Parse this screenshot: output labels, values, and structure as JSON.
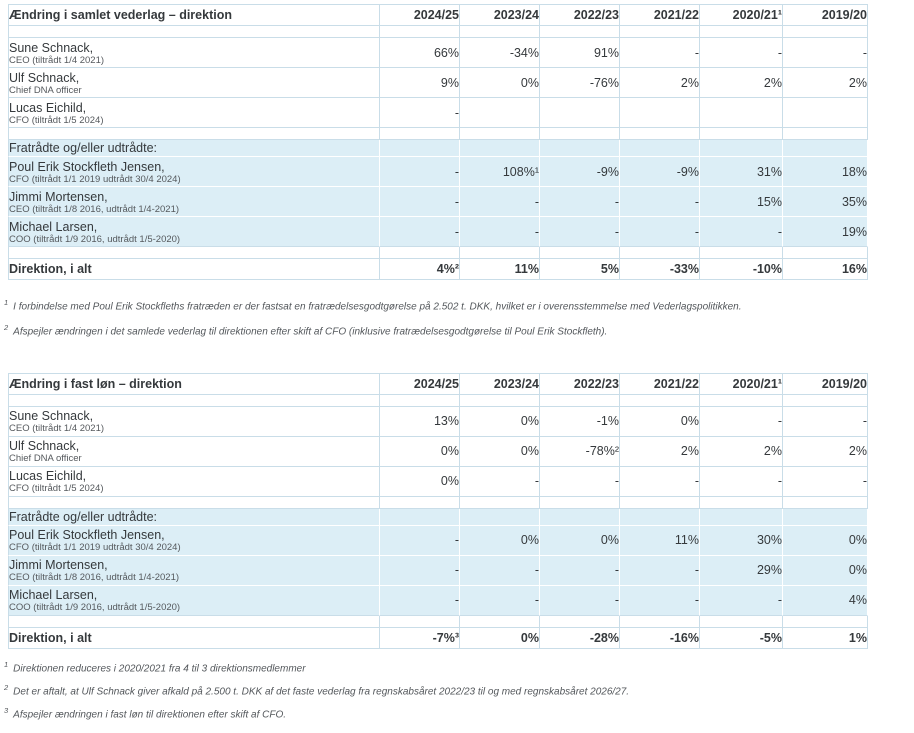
{
  "colors": {
    "band_background": "#dceef6",
    "cell_border": "#c9dde8",
    "band_border": "#ffffff",
    "text": "#35393c",
    "sub_text": "#55595d",
    "footnote_text": "#53575b"
  },
  "columns": {
    "label_width": 372,
    "value_widths": [
      80,
      80,
      80,
      80,
      83,
      85
    ]
  },
  "tables": [
    {
      "id": "samlet-vederlag",
      "title": "Ændring i samlet vederlag – direktion",
      "years": [
        "2024/25",
        "2023/24",
        "2022/23",
        "2021/22",
        "2020/21¹",
        "2019/20"
      ],
      "rows": [
        {
          "type": "spacer"
        },
        {
          "type": "person",
          "name": "Sune Schnack,",
          "sub": "CEO (tiltrådt 1/4 2021)",
          "values": [
            "66%",
            "-34%",
            "91%",
            "-",
            "-",
            "-"
          ]
        },
        {
          "type": "person",
          "name": "Ulf Schnack,",
          "sub": "Chief DNA officer",
          "values": [
            "9%",
            "0%",
            "-76%",
            "2%",
            "2%",
            "2%"
          ]
        },
        {
          "type": "person",
          "name": "Lucas Eichild,",
          "sub": "CFO (tiltrådt 1/5 2024)",
          "values": [
            "-",
            "",
            "",
            "",
            "",
            ""
          ]
        },
        {
          "type": "spacer"
        },
        {
          "type": "section",
          "band": true,
          "label": "Fratrådte og/eller udtrådte:"
        },
        {
          "type": "person",
          "band": true,
          "name": "Poul Erik Stockfleth Jensen,",
          "sub": "CFO (tiltrådt 1/1 2019 udtrådt 30/4 2024)",
          "values": [
            "-",
            "108%¹",
            "-9%",
            "-9%",
            "31%",
            "18%"
          ]
        },
        {
          "type": "person",
          "band": true,
          "name": "Jimmi Mortensen,",
          "sub": "CEO (tiltrådt 1/8 2016, udtrådt 1/4-2021)",
          "values": [
            "-",
            "-",
            "-",
            "-",
            "15%",
            "35%"
          ]
        },
        {
          "type": "person",
          "band": true,
          "bandLast": true,
          "name": "Michael Larsen,",
          "sub": "COO (tiltrådt 1/9 2016, udtrådt 1/5-2020)",
          "values": [
            "-",
            "-",
            "-",
            "-",
            "-",
            "19%"
          ]
        },
        {
          "type": "spacer"
        },
        {
          "type": "total",
          "label": "Direktion, i alt",
          "values": [
            "4%²",
            "11%",
            "5%",
            "-33%",
            "-10%",
            "16%"
          ]
        }
      ],
      "footnotes": [
        {
          "marker": "1",
          "text": "I forbindelse med Poul Erik Stockfleths fratræden er der fastsat en fratrædelsesgodtgørelse på 2.502 t. DKK, hvilket er i overensstemmelse med Vederlagspolitikken."
        },
        {
          "marker": "2",
          "text": "Afspejler ændringen i det samlede vederlag til direktionen efter skift af CFO (inklusive fratrædelsesgodtgørelse til Poul Erik Stockfleth)."
        }
      ]
    },
    {
      "id": "fast-loen",
      "title": "Ændring i fast løn – direktion",
      "years": [
        "2024/25",
        "2023/24",
        "2022/23",
        "2021/22",
        "2020/21¹",
        "2019/20"
      ],
      "rows": [
        {
          "type": "spacer"
        },
        {
          "type": "person",
          "name": "Sune Schnack,",
          "sub": "CEO (tiltrådt 1/4 2021)",
          "values": [
            "13%",
            "0%",
            "-1%",
            "0%",
            "-",
            "-"
          ]
        },
        {
          "type": "person",
          "name": "Ulf Schnack,",
          "sub": "Chief DNA officer",
          "values": [
            "0%",
            "0%",
            "-78%²",
            "2%",
            "2%",
            "2%"
          ]
        },
        {
          "type": "person",
          "name": "Lucas Eichild,",
          "sub": "CFO (tiltrådt 1/5 2024)",
          "values": [
            "0%",
            "-",
            "-",
            "-",
            "-",
            "-"
          ]
        },
        {
          "type": "spacer"
        },
        {
          "type": "section",
          "band": true,
          "label": "Fratrådte og/eller udtrådte:"
        },
        {
          "type": "person",
          "band": true,
          "name": "Poul Erik Stockfleth Jensen,",
          "sub": "CFO (tiltrådt 1/1 2019 udtrådt 30/4 2024)",
          "values": [
            "-",
            "0%",
            "0%",
            "11%",
            "30%",
            "0%"
          ]
        },
        {
          "type": "person",
          "band": true,
          "name": "Jimmi Mortensen,",
          "sub": "CEO (tiltrådt 1/8 2016, udtrådt 1/4-2021)",
          "values": [
            "-",
            "-",
            "-",
            "-",
            "29%",
            "0%"
          ]
        },
        {
          "type": "person",
          "band": true,
          "bandLast": true,
          "name": "Michael Larsen,",
          "sub": "COO (tiltrådt 1/9 2016, udtrådt 1/5-2020)",
          "values": [
            "-",
            "-",
            "-",
            "-",
            "-",
            "4%"
          ]
        },
        {
          "type": "spacer"
        },
        {
          "type": "total",
          "label": "Direktion, i alt",
          "values": [
            "-7%³",
            "0%",
            "-28%",
            "-16%",
            "-5%",
            "1%"
          ]
        }
      ],
      "footnotes": [
        {
          "marker": "1",
          "text": "Direktionen reduceres i 2020/2021 fra 4 til 3 direktionsmedlemmer"
        },
        {
          "marker": "2",
          "text": "Det er aftalt, at Ulf Schnack giver afkald på 2.500 t. DKK af det faste vederlag fra regnskabsåret 2022/23 til og med regnskabsåret 2026/27."
        },
        {
          "marker": "3",
          "text": "Afspejler ændringen i fast løn til direktionen efter skift af CFO."
        }
      ]
    }
  ]
}
